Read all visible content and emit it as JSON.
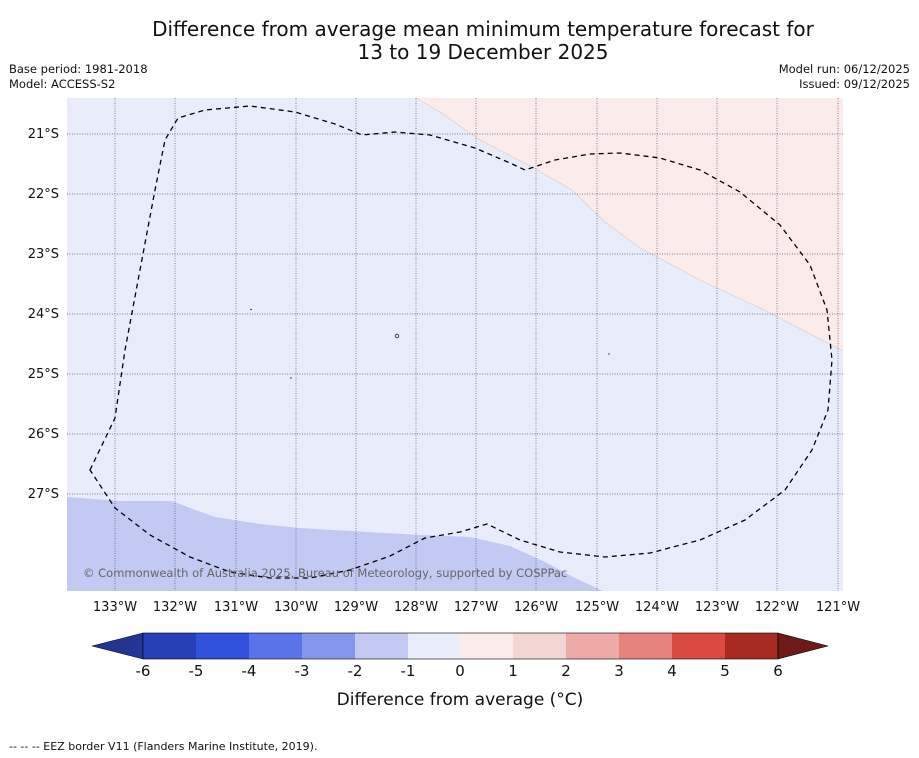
{
  "title": {
    "line1": "Difference from average mean minimum temperature forecast for",
    "line2": "13 to 19 December 2025"
  },
  "meta_left": {
    "base_period": "Base period: 1981-2018",
    "model": "Model: ACCESS-S2"
  },
  "meta_right": {
    "model_run": "Model run: 06/12/2025",
    "issued": "Issued: 09/12/2025"
  },
  "map": {
    "latitude_labels": [
      "21°S",
      "22°S",
      "23°S",
      "24°S",
      "25°S",
      "26°S",
      "27°S"
    ],
    "longitude_labels": [
      "133°W",
      "132°W",
      "131°W",
      "130°W",
      "129°W",
      "128°W",
      "127°W",
      "126°W",
      "125°W",
      "124°W",
      "123°W",
      "122°W",
      "121°W"
    ],
    "copyright": "© Commonwealth of Australia 2025, Bureau of Meteorology, supported by COSPPac",
    "colors": {
      "class_minus1_to_0": "#e9ecfa",
      "class_minus2_to_minus1": "#c2c9f3",
      "class_0_to_1": "#fbeceb",
      "eez_border": "#000000",
      "gridline": "#555577"
    }
  },
  "colorbar": {
    "tick_labels": [
      "-6",
      "-5",
      "-4",
      "-3",
      "-2",
      "-1",
      "0",
      "1",
      "2",
      "3",
      "4",
      "5",
      "6"
    ],
    "label": "Difference from average (°C)",
    "colors": [
      "#233592",
      "#263eb6",
      "#3150dc",
      "#5b73e8",
      "#8397ed",
      "#c2c9f3",
      "#e9ecfa",
      "#fbeceb",
      "#f2d6d4",
      "#edaaa6",
      "#e6837d",
      "#da4a3f",
      "#a82b22",
      "#6e1a16"
    ]
  },
  "footer": "-- -- -- EEZ border V11 (Flanders Marine Institute, 2019)."
}
